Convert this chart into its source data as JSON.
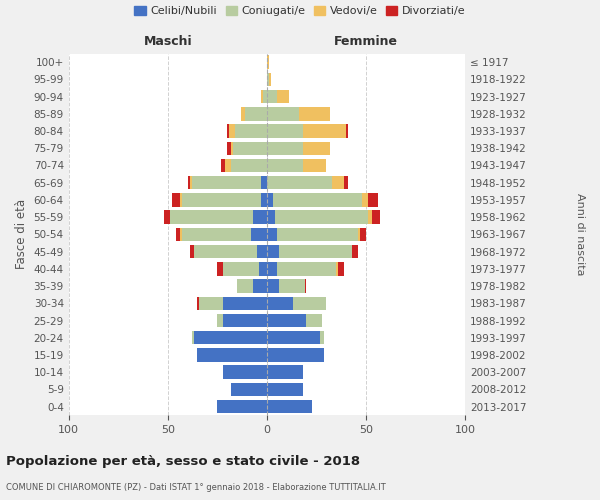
{
  "age_groups": [
    "0-4",
    "5-9",
    "10-14",
    "15-19",
    "20-24",
    "25-29",
    "30-34",
    "35-39",
    "40-44",
    "45-49",
    "50-54",
    "55-59",
    "60-64",
    "65-69",
    "70-74",
    "75-79",
    "80-84",
    "85-89",
    "90-94",
    "95-99",
    "100+"
  ],
  "anni_nascita": [
    "2013-2017",
    "2008-2012",
    "2003-2007",
    "1998-2002",
    "1993-1997",
    "1988-1992",
    "1983-1987",
    "1978-1982",
    "1973-1977",
    "1968-1972",
    "1963-1967",
    "1958-1962",
    "1953-1957",
    "1948-1952",
    "1943-1947",
    "1938-1942",
    "1933-1937",
    "1928-1932",
    "1923-1927",
    "1918-1922",
    "≤ 1917"
  ],
  "male_celibi": [
    25,
    18,
    22,
    35,
    37,
    22,
    22,
    7,
    4,
    5,
    8,
    7,
    3,
    3,
    0,
    0,
    0,
    0,
    0,
    0,
    0
  ],
  "male_coniugati": [
    0,
    0,
    0,
    0,
    1,
    3,
    12,
    8,
    18,
    32,
    35,
    42,
    40,
    35,
    18,
    17,
    16,
    11,
    2,
    0,
    0
  ],
  "male_vedovi": [
    0,
    0,
    0,
    0,
    0,
    0,
    0,
    0,
    0,
    0,
    1,
    0,
    1,
    1,
    3,
    1,
    3,
    2,
    1,
    0,
    0
  ],
  "male_divorziati": [
    0,
    0,
    0,
    0,
    0,
    0,
    1,
    0,
    3,
    2,
    2,
    3,
    4,
    1,
    2,
    2,
    1,
    0,
    0,
    0,
    0
  ],
  "female_celibi": [
    23,
    18,
    18,
    29,
    27,
    20,
    13,
    6,
    5,
    6,
    5,
    4,
    3,
    0,
    0,
    0,
    0,
    0,
    0,
    0,
    0
  ],
  "female_coniugati": [
    0,
    0,
    0,
    0,
    2,
    8,
    17,
    13,
    30,
    37,
    41,
    47,
    45,
    33,
    18,
    18,
    18,
    16,
    5,
    1,
    0
  ],
  "female_vedovi": [
    0,
    0,
    0,
    0,
    0,
    0,
    0,
    0,
    1,
    0,
    1,
    2,
    3,
    6,
    12,
    14,
    22,
    16,
    6,
    1,
    1
  ],
  "female_divorziati": [
    0,
    0,
    0,
    0,
    0,
    0,
    0,
    1,
    3,
    3,
    3,
    4,
    5,
    2,
    0,
    0,
    1,
    0,
    0,
    0,
    0
  ],
  "colors": {
    "celibi": "#4472c4",
    "coniugati": "#b8cca0",
    "vedovi": "#f0c060",
    "divorziati": "#cc2222"
  },
  "title": "Popolazione per età, sesso e stato civile - 2018",
  "subtitle": "COMUNE DI CHIAROMONTE (PZ) - Dati ISTAT 1° gennaio 2018 - Elaborazione TUTTITALIA.IT",
  "xlabel_left": "Maschi",
  "xlabel_right": "Femmine",
  "ylabel_left": "Fasce di età",
  "ylabel_right": "Anni di nascita",
  "xlim": 100,
  "legend_labels": [
    "Celibi/Nubili",
    "Coniugati/e",
    "Vedovi/e",
    "Divorziati/e"
  ],
  "bg_color": "#f0f0f0",
  "plot_bg_color": "#ffffff",
  "grid_color": "#cccccc"
}
